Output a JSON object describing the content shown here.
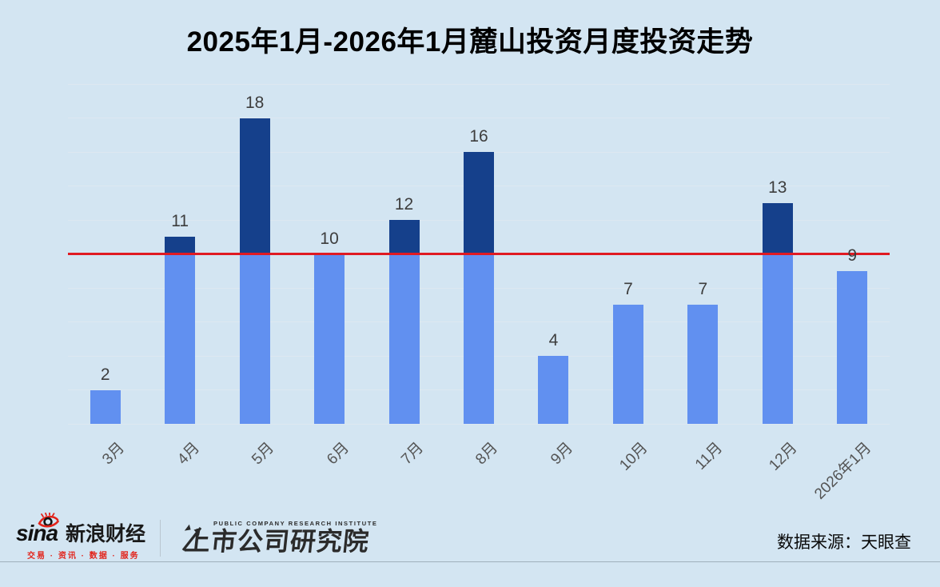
{
  "title": "2025年1月-2026年1月麓山投资月度投资走势",
  "chart_data": {
    "type": "bar",
    "title": "2025年1月-2026年1月麓山投资月度投资走势",
    "categories": [
      "3月",
      "4月",
      "5月",
      "6月",
      "7月",
      "8月",
      "9月",
      "10月",
      "11月",
      "12月",
      "2026年1月"
    ],
    "values": [
      2,
      11,
      18,
      10,
      12,
      16,
      4,
      7,
      7,
      13,
      9
    ],
    "xlabel": "",
    "ylabel": "",
    "ylim": [
      0,
      20
    ],
    "grid": true,
    "grid_step": 2,
    "legend": false,
    "reference_line": {
      "value": 10,
      "color": "#e01a22"
    },
    "bar_color_below_line": "#6190f0",
    "bar_color_above_line": "#15408b"
  },
  "footer": {
    "source_label": "数据来源：天眼查",
    "sina_logo": {
      "brand": "sina",
      "name": "新浪财经",
      "tagline": "交易 · 资讯 · 数据 · 服务"
    },
    "institute_logo": {
      "subtitle": "PUBLIC COMPANY RESEARCH INSTITUTE",
      "name": "上市公司研究院"
    }
  },
  "colors": {
    "background": "#d3e5f2",
    "gridline": "#dde8f1",
    "bar_light": "#6190f0",
    "bar_dark": "#15408b",
    "reference_red": "#e01a22",
    "value_label": "#3d3d3d",
    "axis_label": "#545454"
  }
}
